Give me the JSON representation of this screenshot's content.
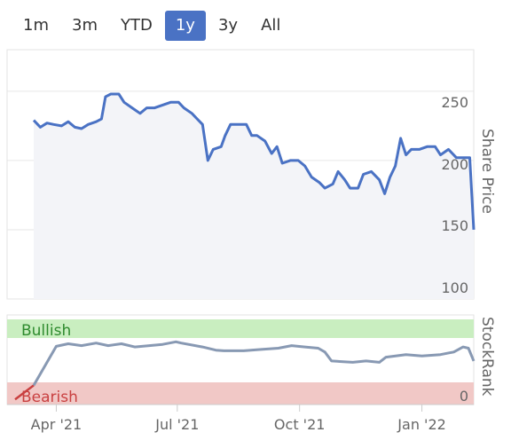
{
  "range_buttons": [
    {
      "label": "1m",
      "active": false
    },
    {
      "label": "3m",
      "active": false
    },
    {
      "label": "YTD",
      "active": false
    },
    {
      "label": "1y",
      "active": true
    },
    {
      "label": "3y",
      "active": false
    },
    {
      "label": "All",
      "active": false
    }
  ],
  "colors": {
    "price_line": "#4a72c4",
    "rank_line": "#8899b3",
    "bullish_band": "#c9eec0",
    "bearish_band": "#f1c8c6",
    "bullish_text": "#2e8b2e",
    "bearish_text": "#c94040",
    "active_button": "#4a72c4"
  },
  "chart_data": [
    {
      "type": "line",
      "ylabel": "Share Price",
      "ylim": [
        100,
        280
      ],
      "y_ticks": [
        "250",
        "200",
        "150",
        "100"
      ],
      "x_ticks": [
        "Apr '21",
        "Jul '21",
        "Oct '21",
        "Jan '22"
      ],
      "grid": true,
      "series": [
        {
          "values": [
            [
              "2021-03-15",
              229
            ],
            [
              "2021-03-20",
              224
            ],
            [
              "2021-03-25",
              227
            ],
            [
              "2021-03-30",
              226
            ],
            [
              "2021-04-05",
              225
            ],
            [
              "2021-04-10",
              228
            ],
            [
              "2021-04-15",
              224
            ],
            [
              "2021-04-20",
              223
            ],
            [
              "2021-04-25",
              226
            ],
            [
              "2021-05-01",
              228
            ],
            [
              "2021-05-05",
              230
            ],
            [
              "2021-05-08",
              246
            ],
            [
              "2021-05-12",
              248
            ],
            [
              "2021-05-18",
              248
            ],
            [
              "2021-05-22",
              242
            ],
            [
              "2021-05-28",
              238
            ],
            [
              "2021-06-03",
              234
            ],
            [
              "2021-06-08",
              238
            ],
            [
              "2021-06-14",
              238
            ],
            [
              "2021-06-20",
              240
            ],
            [
              "2021-06-26",
              242
            ],
            [
              "2021-07-02",
              242
            ],
            [
              "2021-07-06",
              238
            ],
            [
              "2021-07-12",
              234
            ],
            [
              "2021-07-16",
              230
            ],
            [
              "2021-07-20",
              226
            ],
            [
              "2021-07-24",
              200
            ],
            [
              "2021-07-28",
              208
            ],
            [
              "2021-08-03",
              210
            ],
            [
              "2021-08-06",
              218
            ],
            [
              "2021-08-10",
              226
            ],
            [
              "2021-08-16",
              226
            ],
            [
              "2021-08-22",
              226
            ],
            [
              "2021-08-26",
              218
            ],
            [
              "2021-08-30",
              218
            ],
            [
              "2021-09-05",
              214
            ],
            [
              "2021-09-10",
              205
            ],
            [
              "2021-09-14",
              210
            ],
            [
              "2021-09-18",
              198
            ],
            [
              "2021-09-24",
              200
            ],
            [
              "2021-09-30",
              200
            ],
            [
              "2021-10-05",
              196
            ],
            [
              "2021-10-10",
              188
            ],
            [
              "2021-10-16",
              184
            ],
            [
              "2021-10-20",
              180
            ],
            [
              "2021-10-26",
              183
            ],
            [
              "2021-10-30",
              192
            ],
            [
              "2021-11-04",
              186
            ],
            [
              "2021-11-08",
              180
            ],
            [
              "2021-11-14",
              180
            ],
            [
              "2021-11-18",
              190
            ],
            [
              "2021-11-24",
              192
            ],
            [
              "2021-11-30",
              186
            ],
            [
              "2021-12-04",
              176
            ],
            [
              "2021-12-08",
              188
            ],
            [
              "2021-12-12",
              196
            ],
            [
              "2021-12-16",
              216
            ],
            [
              "2021-12-20",
              204
            ],
            [
              "2021-12-24",
              208
            ],
            [
              "2021-12-30",
              208
            ],
            [
              "2022-01-05",
              210
            ],
            [
              "2022-01-11",
              210
            ],
            [
              "2022-01-15",
              204
            ],
            [
              "2022-01-21",
              208
            ],
            [
              "2022-01-27",
              202
            ],
            [
              "2022-02-02",
              202
            ],
            [
              "2022-02-06",
              202
            ],
            [
              "2022-02-09",
              150
            ]
          ]
        }
      ]
    },
    {
      "type": "line",
      "ylabel": "StockRank",
      "ylim": [
        -10,
        130
      ],
      "y_ticks": [
        "0"
      ],
      "bands": [
        {
          "label": "Bullish",
          "from": 95,
          "to": 130
        },
        {
          "label": "Bearish",
          "from": -10,
          "to": 15
        }
      ],
      "series": [
        {
          "values": [
            [
              "2021-03-01",
              -2
            ],
            [
              "2021-03-15",
              20
            ],
            [
              "2021-04-01",
              81
            ],
            [
              "2021-04-10",
              85
            ],
            [
              "2021-04-20",
              82
            ],
            [
              "2021-05-01",
              86
            ],
            [
              "2021-05-10",
              82
            ],
            [
              "2021-05-20",
              85
            ],
            [
              "2021-05-30",
              80
            ],
            [
              "2021-06-10",
              82
            ],
            [
              "2021-06-20",
              84
            ],
            [
              "2021-06-30",
              88
            ],
            [
              "2021-07-04",
              86
            ],
            [
              "2021-07-20",
              80
            ],
            [
              "2021-07-30",
              75
            ],
            [
              "2021-08-05",
              74
            ],
            [
              "2021-08-20",
              74
            ],
            [
              "2021-09-01",
              76
            ],
            [
              "2021-09-15",
              78
            ],
            [
              "2021-09-25",
              82
            ],
            [
              "2021-10-05",
              80
            ],
            [
              "2021-10-15",
              78
            ],
            [
              "2021-10-20",
              72
            ],
            [
              "2021-10-25",
              58
            ],
            [
              "2021-11-10",
              56
            ],
            [
              "2021-11-20",
              58
            ],
            [
              "2021-11-30",
              56
            ],
            [
              "2021-12-05",
              64
            ],
            [
              "2021-12-20",
              68
            ],
            [
              "2022-01-01",
              66
            ],
            [
              "2022-01-15",
              68
            ],
            [
              "2022-01-25",
              72
            ],
            [
              "2022-02-01",
              80
            ],
            [
              "2022-02-05",
              78
            ],
            [
              "2022-02-09",
              58
            ]
          ]
        }
      ]
    }
  ]
}
